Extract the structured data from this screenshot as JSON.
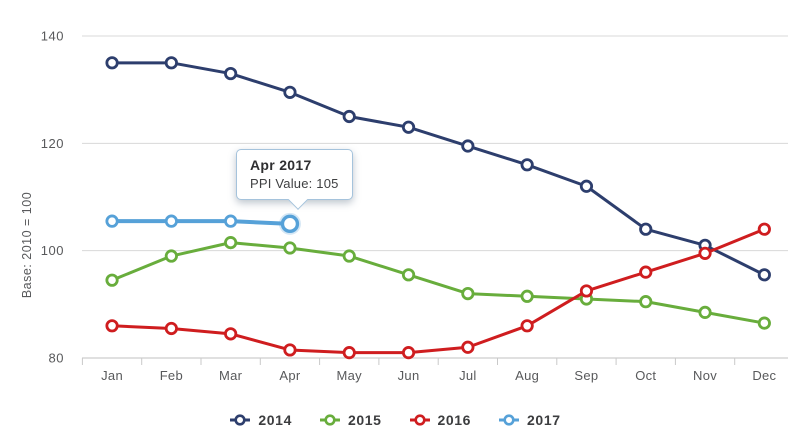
{
  "chart_data": {
    "type": "line",
    "title": "",
    "xlabel": "",
    "ylabel": "Base: 2010 = 100",
    "categories": [
      "Jan",
      "Feb",
      "Mar",
      "Apr",
      "May",
      "Jun",
      "Jul",
      "Aug",
      "Sep",
      "Oct",
      "Nov",
      "Dec"
    ],
    "y_ticks": [
      140,
      120,
      100,
      80
    ],
    "ylim": [
      80,
      140
    ],
    "grid": true,
    "legend_position": "bottom",
    "series": [
      {
        "name": "2014",
        "color": "#2d3e6d",
        "values": [
          135,
          135,
          133,
          129.5,
          125,
          123,
          119.5,
          116,
          112,
          104,
          101,
          95.5
        ]
      },
      {
        "name": "2015",
        "color": "#68ad3c",
        "values": [
          94.5,
          99,
          101.5,
          100.5,
          99,
          95.5,
          92,
          91.5,
          91,
          90.5,
          88.5,
          86.5
        ]
      },
      {
        "name": "2016",
        "color": "#cf1d1f",
        "values": [
          86,
          85.5,
          84.5,
          81.5,
          81,
          81,
          82,
          86,
          92.5,
          96,
          99.5,
          104
        ]
      },
      {
        "name": "2017",
        "color": "#56a1d8",
        "values": [
          105.5,
          105.5,
          105.5,
          105
        ],
        "highlight_index": 3
      }
    ],
    "tooltip": {
      "title": "Apr 2017",
      "text": "PPI Value: 105"
    }
  },
  "colors": {
    "gridline": "#d8d8d8",
    "axis_line": "#c2c2c2",
    "tick_mark": "#c9c9c9",
    "tick_text": "#58595b"
  }
}
